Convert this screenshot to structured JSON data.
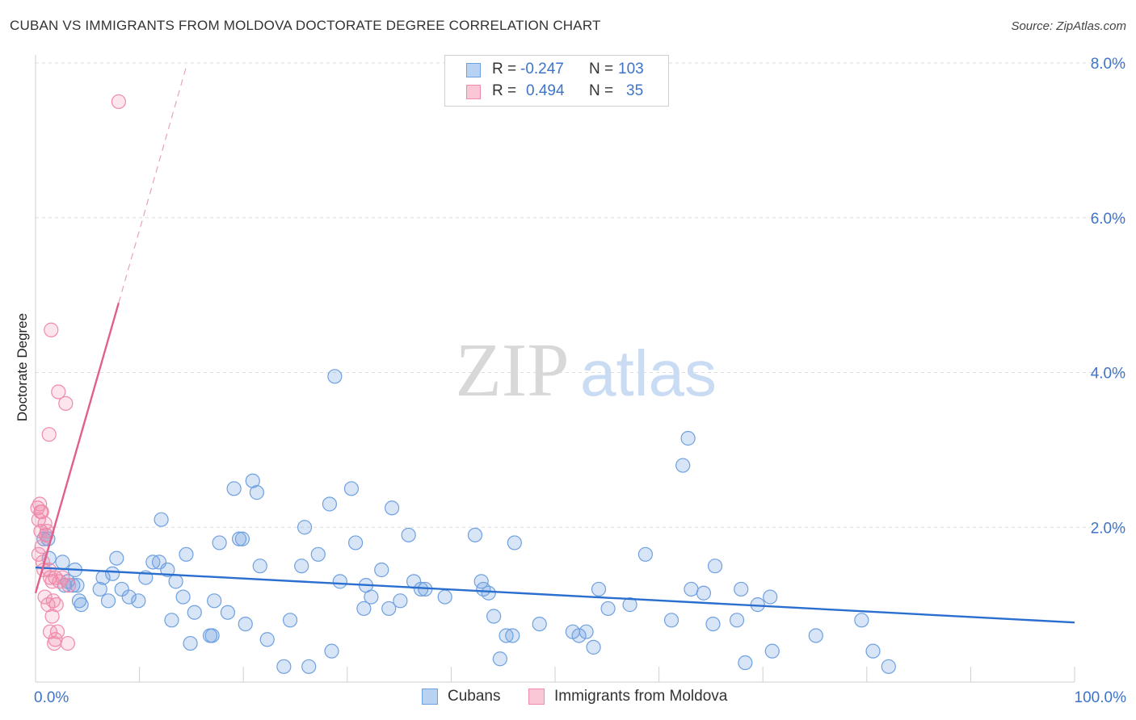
{
  "title": "CUBAN VS IMMIGRANTS FROM MOLDOVA DOCTORATE DEGREE CORRELATION CHART",
  "source": "Source: ZipAtlas.com",
  "watermark": {
    "zip": "ZIP",
    "atlas": "atlas"
  },
  "legend": {
    "rows": [
      {
        "r_label": "R =",
        "r_value": "-0.247",
        "n_label": "N =",
        "n_value": "103"
      },
      {
        "r_label": "R =",
        "r_value": "0.494",
        "n_label": "N =",
        "n_value": "35"
      }
    ]
  },
  "chart_data": {
    "type": "scatter",
    "ylabel": "Doctorate Degree",
    "xlabel": "",
    "xlim": [
      0,
      100
    ],
    "ylim": [
      0,
      8.0
    ],
    "x_tick_labels": [
      "0.0%",
      "100.0%"
    ],
    "y_ticks": [
      2.0,
      4.0,
      6.0,
      8.0
    ],
    "y_tick_labels": [
      "2.0%",
      "4.0%",
      "6.0%",
      "8.0%"
    ],
    "colors": {
      "cubans": "#6fa0e0",
      "moldova": "#f08aaa",
      "cubans_line": "#2a6fcf",
      "moldova_line": "#e0608a",
      "axis_label": "#3d74c9"
    },
    "series": [
      {
        "name": "Cubans",
        "trend": {
          "x0": 0,
          "y0": 1.48,
          "x1": 100,
          "y1": 0.77
        },
        "points": [
          [
            0.8,
            1.85
          ],
          [
            1.0,
            1.9
          ],
          [
            1.3,
            1.6
          ],
          [
            2.6,
            1.55
          ],
          [
            2.8,
            1.25
          ],
          [
            3.6,
            1.25
          ],
          [
            3.8,
            1.45
          ],
          [
            4.0,
            1.25
          ],
          [
            4.2,
            1.05
          ],
          [
            4.4,
            1.0
          ],
          [
            6.2,
            1.2
          ],
          [
            6.5,
            1.35
          ],
          [
            7.0,
            1.05
          ],
          [
            7.8,
            1.6
          ],
          [
            8.3,
            1.2
          ],
          [
            9.0,
            1.1
          ],
          [
            9.9,
            1.05
          ],
          [
            10.6,
            1.35
          ],
          [
            11.3,
            1.55
          ],
          [
            11.9,
            1.55
          ],
          [
            12.1,
            2.1
          ],
          [
            12.7,
            1.45
          ],
          [
            13.1,
            0.8
          ],
          [
            13.5,
            1.3
          ],
          [
            14.2,
            1.1
          ],
          [
            14.5,
            1.65
          ],
          [
            14.9,
            0.5
          ],
          [
            15.3,
            0.9
          ],
          [
            16.8,
            0.6
          ],
          [
            17.0,
            0.6
          ],
          [
            17.2,
            1.05
          ],
          [
            17.7,
            1.8
          ],
          [
            18.5,
            0.9
          ],
          [
            19.1,
            2.5
          ],
          [
            19.6,
            1.85
          ],
          [
            19.9,
            1.85
          ],
          [
            20.2,
            0.75
          ],
          [
            20.9,
            2.6
          ],
          [
            21.3,
            2.45
          ],
          [
            21.6,
            1.5
          ],
          [
            22.3,
            0.55
          ],
          [
            23.9,
            0.2
          ],
          [
            24.5,
            0.8
          ],
          [
            25.6,
            1.5
          ],
          [
            25.9,
            2.0
          ],
          [
            26.3,
            0.2
          ],
          [
            27.2,
            1.65
          ],
          [
            28.3,
            2.3
          ],
          [
            28.5,
            0.4
          ],
          [
            28.8,
            3.95
          ],
          [
            29.3,
            1.3
          ],
          [
            30.4,
            2.5
          ],
          [
            30.8,
            1.8
          ],
          [
            31.6,
            0.95
          ],
          [
            31.8,
            1.25
          ],
          [
            32.3,
            1.1
          ],
          [
            33.3,
            1.45
          ],
          [
            34.0,
            0.95
          ],
          [
            34.3,
            2.25
          ],
          [
            35.1,
            1.05
          ],
          [
            35.9,
            1.9
          ],
          [
            36.4,
            1.3
          ],
          [
            37.1,
            1.2
          ],
          [
            37.5,
            1.2
          ],
          [
            39.4,
            1.1
          ],
          [
            42.3,
            1.9
          ],
          [
            42.9,
            1.3
          ],
          [
            43.1,
            1.2
          ],
          [
            43.6,
            1.15
          ],
          [
            44.1,
            0.85
          ],
          [
            44.7,
            0.3
          ],
          [
            45.3,
            0.6
          ],
          [
            45.9,
            0.6
          ],
          [
            46.1,
            1.8
          ],
          [
            48.5,
            0.75
          ],
          [
            51.7,
            0.65
          ],
          [
            52.3,
            0.6
          ],
          [
            53.0,
            0.65
          ],
          [
            53.7,
            0.45
          ],
          [
            54.2,
            1.2
          ],
          [
            55.1,
            0.95
          ],
          [
            57.2,
            1.0
          ],
          [
            58.7,
            1.65
          ],
          [
            61.2,
            0.8
          ],
          [
            62.3,
            2.8
          ],
          [
            62.8,
            3.15
          ],
          [
            63.1,
            1.2
          ],
          [
            64.3,
            1.15
          ],
          [
            65.2,
            0.75
          ],
          [
            65.4,
            1.5
          ],
          [
            67.5,
            0.8
          ],
          [
            67.9,
            1.2
          ],
          [
            68.3,
            0.25
          ],
          [
            69.5,
            1.0
          ],
          [
            70.7,
            1.1
          ],
          [
            70.9,
            0.4
          ],
          [
            75.1,
            0.6
          ],
          [
            79.5,
            0.8
          ],
          [
            80.6,
            0.4
          ],
          [
            82.1,
            0.2
          ],
          [
            1.2,
            1.85
          ],
          [
            3.1,
            1.3
          ],
          [
            7.4,
            1.4
          ]
        ]
      },
      {
        "name": "Immigrants from Moldova",
        "trend": {
          "x0": 0,
          "y0": 1.15,
          "x1": 8.0,
          "y1": 4.9
        },
        "trend_dashed": {
          "x0": 8.0,
          "y0": 4.9,
          "x1": 14.5,
          "y1": 7.95
        },
        "points": [
          [
            0.2,
            2.25
          ],
          [
            0.3,
            2.1
          ],
          [
            0.4,
            2.3
          ],
          [
            0.5,
            2.2
          ],
          [
            0.5,
            1.95
          ],
          [
            0.6,
            1.75
          ],
          [
            0.7,
            1.55
          ],
          [
            0.8,
            1.45
          ],
          [
            0.9,
            1.1
          ],
          [
            0.9,
            2.05
          ],
          [
            1.0,
            1.9
          ],
          [
            1.1,
            1.95
          ],
          [
            1.2,
            1.0
          ],
          [
            1.3,
            1.45
          ],
          [
            1.3,
            3.2
          ],
          [
            1.4,
            1.35
          ],
          [
            1.4,
            0.65
          ],
          [
            1.5,
            4.55
          ],
          [
            1.6,
            1.3
          ],
          [
            1.6,
            0.85
          ],
          [
            1.7,
            1.05
          ],
          [
            1.8,
            0.5
          ],
          [
            1.9,
            0.55
          ],
          [
            1.9,
            1.35
          ],
          [
            2.0,
            1.0
          ],
          [
            2.1,
            0.65
          ],
          [
            2.2,
            3.75
          ],
          [
            2.3,
            1.3
          ],
          [
            2.6,
            1.35
          ],
          [
            2.9,
            3.6
          ],
          [
            3.1,
            0.5
          ],
          [
            3.2,
            1.25
          ],
          [
            8.0,
            7.5
          ],
          [
            0.3,
            1.65
          ],
          [
            0.6,
            2.2
          ]
        ]
      }
    ]
  },
  "bottom_legend": [
    {
      "label": "Cubans"
    },
    {
      "label": "Immigrants from Moldova"
    }
  ]
}
